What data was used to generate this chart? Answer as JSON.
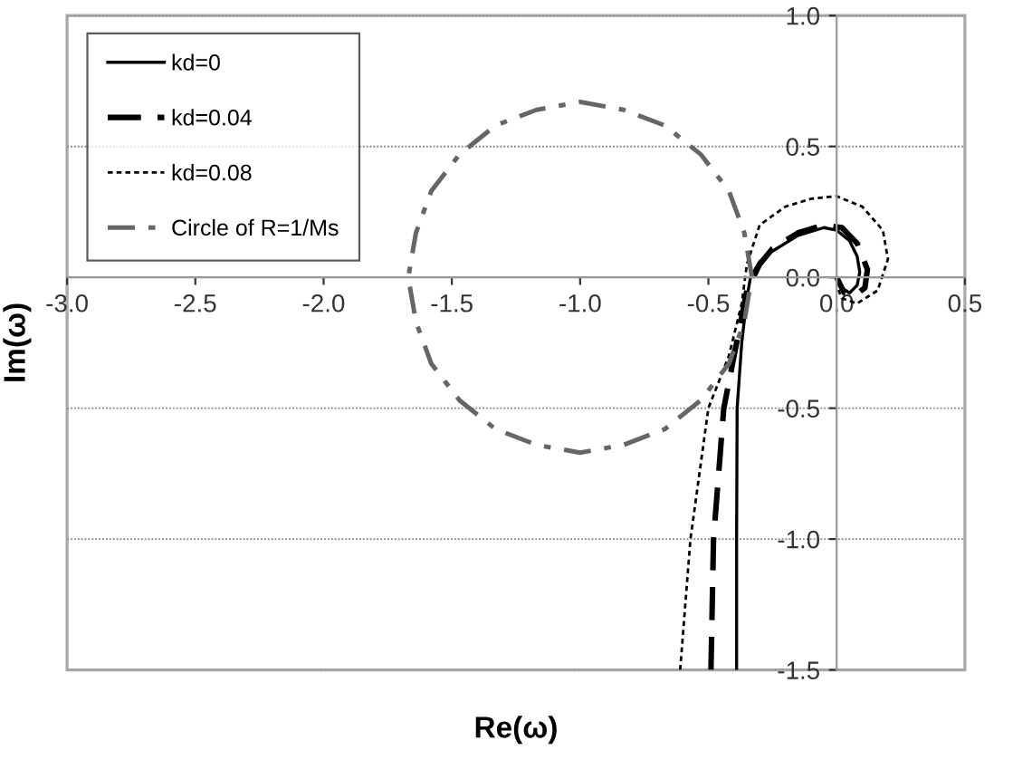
{
  "chart_data": {
    "type": "line",
    "xlabel": "Re(ω)",
    "ylabel": "Im(ω)",
    "xlim": [
      -3.0,
      0.5
    ],
    "ylim": [
      -1.5,
      1.0
    ],
    "xticks": [
      {
        "value": -3.0,
        "label": "-3.0"
      },
      {
        "value": -2.5,
        "label": "-2.5"
      },
      {
        "value": -2.0,
        "label": "-2.0"
      },
      {
        "value": -1.5,
        "label": "-1.5"
      },
      {
        "value": -1.0,
        "label": "-1.0"
      },
      {
        "value": -0.5,
        "label": "-0.5"
      },
      {
        "value": 0.0,
        "label": "0.0"
      },
      {
        "value": 0.5,
        "label": "0.5"
      }
    ],
    "yticks": [
      {
        "value": -1.5,
        "label": "-1.5"
      },
      {
        "value": -1.0,
        "label": "-1.0"
      },
      {
        "value": -0.5,
        "label": "-0.5"
      },
      {
        "value": 0.0,
        "label": "0.0"
      },
      {
        "value": 0.5,
        "label": "0.5"
      },
      {
        "value": 1.0,
        "label": "1.0"
      }
    ],
    "grid": "y",
    "legend": "top left",
    "marker": "none",
    "series": [
      {
        "name": "kd=0",
        "color": "#000000",
        "line_style": "solid",
        "x": [
          -0.39,
          -0.39,
          -0.388,
          -0.37,
          -0.35,
          -0.336,
          -0.3,
          -0.25,
          -0.15,
          -0.05,
          0.0,
          0.05,
          0.08,
          0.09,
          0.08,
          0.05,
          0.02,
          0.0
        ],
        "values": [
          -1.5,
          -1.0,
          -0.5,
          -0.25,
          -0.08,
          0.0,
          0.06,
          0.1,
          0.16,
          0.19,
          0.18,
          0.14,
          0.08,
          0.02,
          -0.03,
          -0.06,
          -0.04,
          0.0
        ]
      },
      {
        "name": "kd=0.04",
        "color": "#000000",
        "line_style": "dashed",
        "x": [
          -0.49,
          -0.48,
          -0.44,
          -0.38,
          -0.35,
          -0.3,
          -0.25,
          -0.15,
          -0.05,
          0.02,
          0.08,
          0.12,
          0.11,
          0.07,
          0.03,
          0.0
        ],
        "values": [
          -1.5,
          -1.0,
          -0.5,
          -0.2,
          -0.05,
          0.05,
          0.11,
          0.17,
          0.2,
          0.19,
          0.13,
          0.03,
          -0.04,
          -0.07,
          -0.06,
          0.0
        ]
      },
      {
        "name": "kd=0.08",
        "color": "#000000",
        "line_style": "dotted",
        "x": [
          -0.61,
          -0.57,
          -0.5,
          -0.42,
          -0.37,
          -0.35,
          -0.3,
          -0.2,
          -0.1,
          0.0,
          0.1,
          0.18,
          0.2,
          0.16,
          0.08,
          0.02,
          0.0
        ],
        "values": [
          -1.5,
          -1.0,
          -0.5,
          -0.3,
          -0.1,
          0.05,
          0.2,
          0.27,
          0.3,
          0.31,
          0.27,
          0.18,
          0.07,
          -0.05,
          -0.1,
          -0.08,
          -0.03
        ]
      },
      {
        "name": "Circle of R=1/Ms",
        "color": "#666666",
        "line_style": "dashdot",
        "x": [
          -0.33,
          -0.36,
          -0.42,
          -0.53,
          -0.67,
          -0.83,
          -1.0,
          -1.17,
          -1.33,
          -1.47,
          -1.58,
          -1.64,
          -1.67,
          -1.64,
          -1.58,
          -1.47,
          -1.33,
          -1.17,
          -1.0,
          -0.83,
          -0.67,
          -0.53,
          -0.42,
          -0.36,
          -0.34
        ],
        "values": [
          0.0,
          0.17,
          0.33,
          0.47,
          0.58,
          0.64,
          0.67,
          0.64,
          0.58,
          0.47,
          0.33,
          0.17,
          0.0,
          -0.17,
          -0.33,
          -0.47,
          -0.58,
          -0.64,
          -0.67,
          -0.64,
          -0.58,
          -0.47,
          -0.33,
          -0.17,
          -0.05
        ]
      }
    ]
  }
}
